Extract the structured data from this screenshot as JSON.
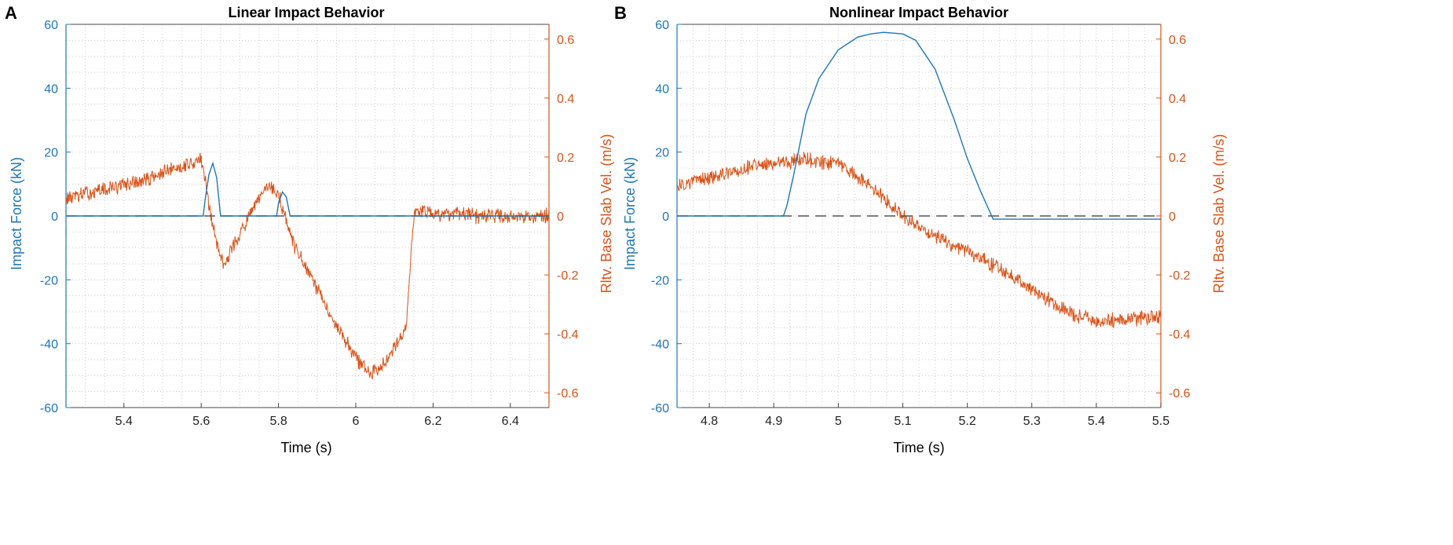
{
  "colors": {
    "force": "#1f77b4",
    "velocity": "#d95319",
    "zero_line": "#555555",
    "grid": "#cccccc",
    "axis": "#000000"
  },
  "chart_data": [
    {
      "panel": "A",
      "type": "line",
      "title": "Linear Impact Behavior",
      "xlabel": "Time (s)",
      "ylabel_left": "Impact Force (kN)",
      "ylabel_right": "Rltv. Base Slab Vel. (m/s)",
      "xlim": [
        5.25,
        6.5
      ],
      "ylim_left": [
        -60,
        60
      ],
      "ylim_right": [
        -0.65,
        0.65
      ],
      "xticks": [
        5.4,
        5.6,
        5.8,
        6,
        6.2,
        6.4
      ],
      "xtick_labels": [
        "5.4",
        "5.6",
        "5.8",
        "6",
        "6.2",
        "6.4"
      ],
      "yticks_left": [
        60,
        40,
        20,
        0,
        -20,
        -40,
        -60
      ],
      "ytick_labels_left": [
        "60",
        "40",
        "20",
        "0",
        "-20",
        "-40",
        "-60"
      ],
      "yticks_right": [
        0.6,
        0.4,
        0.2,
        0,
        -0.2,
        -0.4,
        -0.6
      ],
      "ytick_labels_right": [
        "0.6",
        "0.4",
        "0.2",
        "0",
        "-0.2",
        "-0.4",
        "-0.6"
      ],
      "grid": true,
      "series": [
        {
          "name": "Impact Force",
          "axis": "left",
          "color": "#1f77b4",
          "style": "solid",
          "x": [
            5.25,
            5.605,
            5.61,
            5.62,
            5.63,
            5.64,
            5.65,
            5.795,
            5.8,
            5.81,
            5.82,
            5.83,
            6.5
          ],
          "y": [
            0,
            0,
            5,
            13,
            16.5,
            12,
            0,
            0,
            4,
            7.5,
            6,
            0,
            0
          ]
        },
        {
          "name": "Rltv. Base Slab Vel.",
          "axis": "right",
          "color": "#d95319",
          "style": "noisy",
          "noise": 0.02,
          "x": [
            5.25,
            5.35,
            5.45,
            5.55,
            5.6,
            5.61,
            5.625,
            5.645,
            5.66,
            5.7,
            5.76,
            5.78,
            5.8,
            5.84,
            5.9,
            5.95,
            6.0,
            6.04,
            6.07,
            6.1,
            6.13,
            6.15,
            6.16,
            6.2,
            6.3,
            6.4,
            6.5
          ],
          "y": [
            0.06,
            0.09,
            0.12,
            0.17,
            0.19,
            0.12,
            0.0,
            -0.12,
            -0.16,
            -0.06,
            0.08,
            0.1,
            0.07,
            -0.1,
            -0.25,
            -0.37,
            -0.48,
            -0.54,
            -0.5,
            -0.44,
            -0.38,
            0.0,
            0.02,
            0.01,
            0.0,
            0.0,
            0.0
          ]
        },
        {
          "name": "Zero reference",
          "axis": "left",
          "color": "#555555",
          "style": "dashed",
          "x": [
            5.25,
            6.5
          ],
          "y": [
            0,
            0
          ]
        }
      ]
    },
    {
      "panel": "B",
      "type": "line",
      "title": "Nonlinear Impact Behavior",
      "xlabel": "Time (s)",
      "ylabel_left": "Impact Force (kN)",
      "ylabel_right": "Rltv. Base Slab Vel. (m/s)",
      "xlim": [
        4.75,
        5.5
      ],
      "ylim_left": [
        -60,
        60
      ],
      "ylim_right": [
        -0.65,
        0.65
      ],
      "xticks": [
        4.8,
        4.9,
        5,
        5.1,
        5.2,
        5.3,
        5.4,
        5.5
      ],
      "xtick_labels": [
        "4.8",
        "4.9",
        "5",
        "5.1",
        "5.2",
        "5.3",
        "5.4",
        "5.5"
      ],
      "yticks_left": [
        60,
        40,
        20,
        0,
        -20,
        -40,
        -60
      ],
      "ytick_labels_left": [
        "60",
        "40",
        "20",
        "0",
        "-20",
        "-40",
        "-60"
      ],
      "yticks_right": [
        0.6,
        0.4,
        0.2,
        0,
        -0.2,
        -0.4,
        -0.6
      ],
      "ytick_labels_right": [
        "0.6",
        "0.4",
        "0.2",
        "0",
        "-0.2",
        "-0.4",
        "-0.6"
      ],
      "grid": true,
      "series": [
        {
          "name": "Impact Force",
          "axis": "left",
          "color": "#1f77b4",
          "style": "solid",
          "x": [
            4.75,
            4.915,
            4.92,
            4.93,
            4.94,
            4.95,
            4.97,
            5.0,
            5.03,
            5.05,
            5.07,
            5.1,
            5.12,
            5.15,
            5.18,
            5.2,
            5.22,
            5.24,
            5.5
          ],
          "y": [
            0,
            0,
            3,
            12,
            22,
            32,
            43,
            52,
            56,
            57,
            57.5,
            57,
            55,
            46,
            30,
            18,
            8,
            -1,
            -1
          ]
        },
        {
          "name": "Rltv. Base Slab Vel.",
          "axis": "right",
          "color": "#d95319",
          "style": "noisy",
          "noise": 0.02,
          "x": [
            4.75,
            4.8,
            4.85,
            4.9,
            4.95,
            5.0,
            5.05,
            5.1,
            5.15,
            5.2,
            5.25,
            5.3,
            5.35,
            5.4,
            5.45,
            5.5
          ],
          "y": [
            0.1,
            0.13,
            0.16,
            0.18,
            0.19,
            0.18,
            0.1,
            0.0,
            -0.07,
            -0.12,
            -0.18,
            -0.25,
            -0.32,
            -0.36,
            -0.35,
            -0.34
          ]
        },
        {
          "name": "Zero reference",
          "axis": "left",
          "color": "#555555",
          "style": "dashed",
          "x": [
            4.75,
            5.5
          ],
          "y": [
            0,
            0
          ]
        }
      ]
    }
  ]
}
